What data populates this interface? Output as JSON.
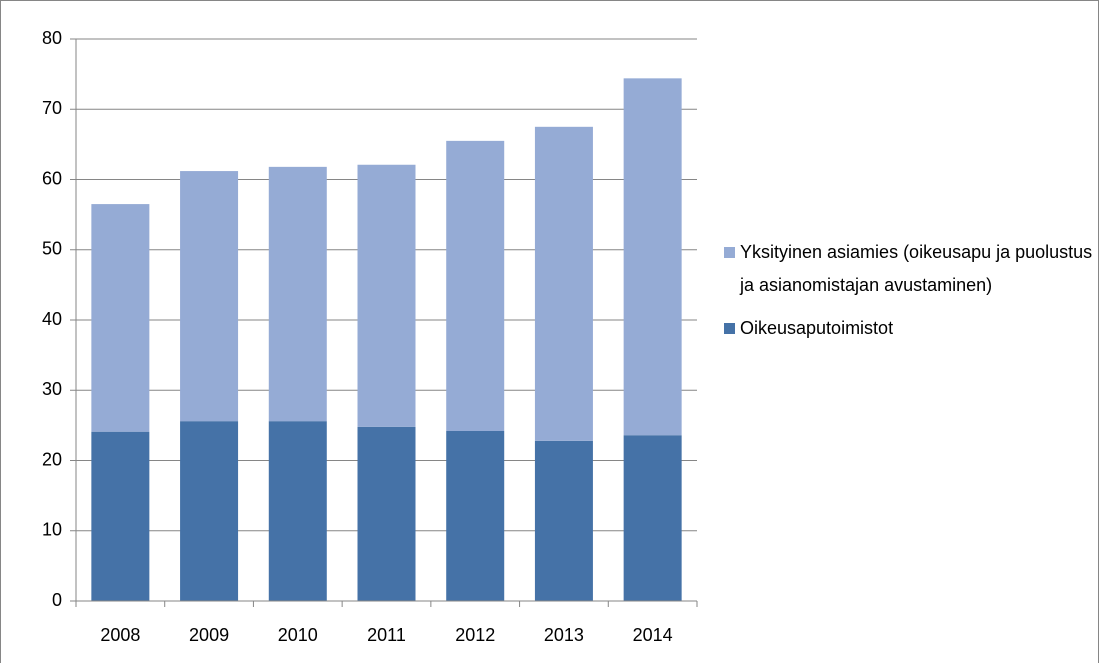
{
  "chart_data": {
    "type": "stacked_bar",
    "categories": [
      "2008",
      "2009",
      "2010",
      "2011",
      "2012",
      "2013",
      "2014"
    ],
    "series": [
      {
        "name": "Oikeusaputoimistot",
        "color": "#4572a7",
        "values": [
          24.1,
          25.6,
          25.6,
          24.8,
          24.2,
          22.8,
          23.6
        ]
      },
      {
        "name": "Yksityinen asiamies (oikeusapu ja puolustus ja asianomistajan avustaminen)",
        "color": "#95abd5",
        "values": [
          32.4,
          35.6,
          36.2,
          37.3,
          41.3,
          44.7,
          50.8
        ]
      }
    ],
    "ylim": [
      0,
      80
    ],
    "yticks": [
      0,
      10,
      20,
      30,
      40,
      50,
      60,
      70,
      80
    ],
    "grid": true,
    "legend": "right"
  }
}
